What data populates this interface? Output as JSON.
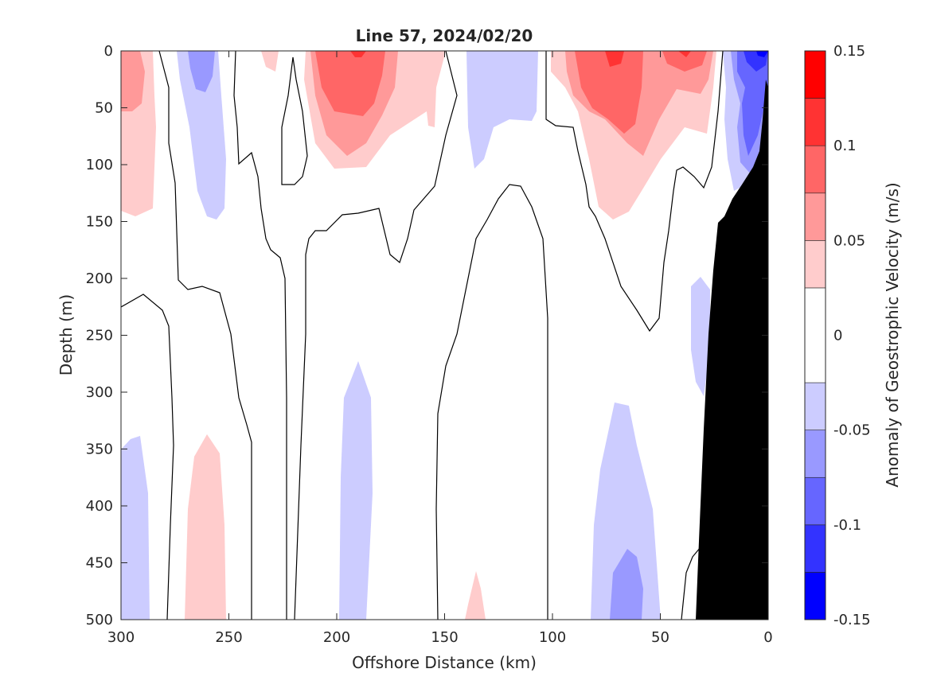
{
  "chart_data": {
    "type": "heatmap",
    "subtype": "filled-contour section",
    "title": "Line 57, 2024/02/20",
    "xlabel": "Offshore Distance (km)",
    "ylabel": "Depth (m)",
    "xlim": [
      300,
      0
    ],
    "ylim": [
      0,
      500
    ],
    "x_axis_reversed": true,
    "y_axis_reversed": true,
    "x_ticks": [
      300,
      250,
      200,
      150,
      100,
      50,
      0
    ],
    "y_ticks": [
      0,
      50,
      100,
      150,
      200,
      250,
      300,
      350,
      400,
      450,
      500
    ],
    "grid": false,
    "colorbar": {
      "label": "Anomaly of Geostrophic Velocity (m/s)",
      "limits": [
        -0.15,
        0.15
      ],
      "tick_values": [
        0.15,
        0.1,
        0.05,
        0,
        -0.05,
        -0.1,
        -0.15
      ],
      "tick_labels": [
        "0.15",
        "0.1",
        "0.05",
        "0",
        "-0.05",
        "-0.1",
        "-0.15"
      ],
      "levels": [
        -0.15,
        -0.125,
        -0.1,
        -0.075,
        -0.05,
        -0.025,
        0.025,
        0.05,
        0.075,
        0.1,
        0.125,
        0.15
      ],
      "colors": [
        "#0000ff",
        "#3333ff",
        "#6666ff",
        "#9999ff",
        "#ccccff",
        "#ffffff",
        "#ffcccc",
        "#ff9999",
        "#ff6666",
        "#ff3333",
        "#ff0000"
      ]
    },
    "zero_contour": {
      "level": 0,
      "color": "#000000"
    },
    "bathymetry": {
      "color": "#000000",
      "description": "seafloor"
    },
    "features": [
      {
        "sign": "positive",
        "max_level": 0.05,
        "x_range_km": [
          289,
          300
        ],
        "depth_range_m": [
          0,
          140
        ]
      },
      {
        "sign": "negative",
        "max_level": -0.075,
        "x_range_km": [
          240,
          272
        ],
        "depth_range_m": [
          0,
          148
        ]
      },
      {
        "sign": "positive",
        "max_level": 0.125,
        "x_range_km": [
          150,
          217
        ],
        "depth_range_m": [
          0,
          105
        ]
      },
      {
        "sign": "negative",
        "max_level": -0.05,
        "x_range_km": [
          110,
          140
        ],
        "depth_range_m": [
          0,
          103
        ]
      },
      {
        "sign": "positive",
        "max_level": 0.125,
        "x_range_km": [
          36,
          100
        ],
        "depth_range_m": [
          0,
          146
        ]
      },
      {
        "sign": "negative",
        "max_level": -0.15,
        "x_range_km": [
          0,
          19
        ],
        "depth_range_m": [
          0,
          110
        ]
      },
      {
        "sign": "negative",
        "max_level": -0.05,
        "x_range_km": [
          29,
          36
        ],
        "depth_range_m": [
          200,
          300
        ]
      },
      {
        "sign": "negative",
        "max_level": -0.05,
        "x_range_km": [
          188,
          201
        ],
        "depth_range_m": [
          273,
          500
        ]
      },
      {
        "sign": "positive",
        "max_level": 0.05,
        "x_range_km": [
          250,
          270
        ],
        "depth_range_m": [
          336,
          500
        ]
      },
      {
        "sign": "negative",
        "max_level": -0.05,
        "x_range_km": [
          288,
          300
        ],
        "depth_range_m": [
          337,
          500
        ]
      },
      {
        "sign": "negative",
        "max_level": -0.075,
        "x_range_km": [
          50,
          82
        ],
        "depth_range_m": [
          306,
          500
        ]
      },
      {
        "sign": "positive",
        "max_level": 0.05,
        "x_range_km": [
          130,
          140
        ],
        "depth_range_m": [
          457,
          500
        ]
      }
    ]
  }
}
